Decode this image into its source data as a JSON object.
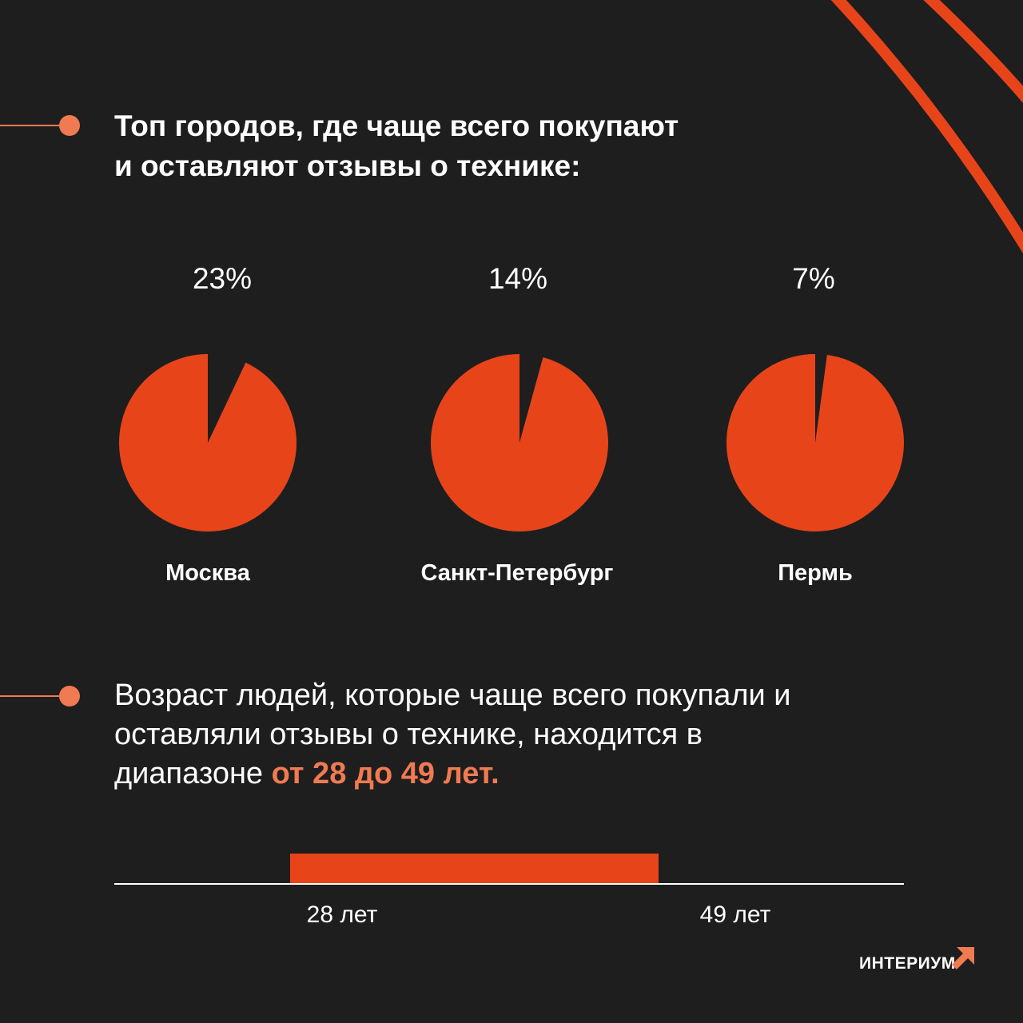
{
  "colors": {
    "background": "#1e1e1e",
    "accent": "#e8441a",
    "accent_light": "#f07a52",
    "text": "#ffffff"
  },
  "section1": {
    "title_line1": "Топ городов, где чаще всего покупают",
    "title_line2": "и оставляют отзывы о технике:"
  },
  "chart_data": [
    {
      "type": "pie",
      "title": "Москва",
      "label": "23%",
      "value": 23,
      "cities": [
        {
          "city": "Москва",
          "label": "23%",
          "value": 23
        },
        {
          "city": "Санкт-Петербург",
          "label": "14%",
          "value": 14
        },
        {
          "city": "Пермь",
          "label": "7%",
          "value": 7
        }
      ]
    },
    {
      "type": "bar",
      "title": "",
      "range_start_label": "28 лет",
      "range_end_label": "49 лет",
      "range": [
        28,
        49
      ]
    }
  ],
  "section2": {
    "text_line1": "Возраст людей, которые чаще всего покупали и",
    "text_line2": "оставляли отзывы о технике, находится в",
    "text_line3_prefix": "диапазоне ",
    "text_highlight": "от 28 до 49 лет."
  },
  "logo": {
    "text": "ИНТЕРИУМ",
    "icon": "arrow-up-right-icon"
  }
}
